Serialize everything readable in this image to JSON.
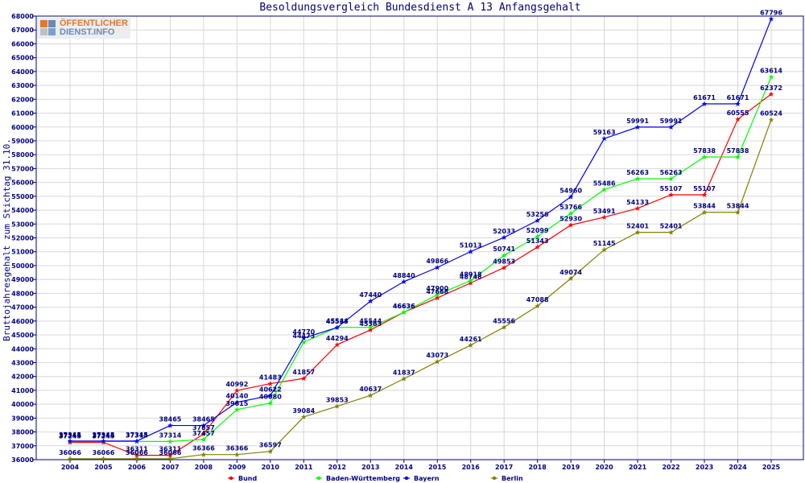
{
  "chart_data": {
    "type": "line",
    "title": "Besoldungsvergleich Bundesdienst A 13 Anfangsgehalt",
    "ylabel": "Bruttojahresgehalt zum Stichtag 31.10.",
    "xlabel": "",
    "ylim": [
      36000,
      68000
    ],
    "ytick_step": 1000,
    "grid": true,
    "legend_position": "bottom",
    "categories": [
      "2004",
      "2005",
      "2006",
      "2007",
      "2008",
      "2009",
      "2010",
      "2011",
      "2012",
      "2013",
      "2014",
      "2015",
      "2016",
      "2017",
      "2018",
      "2019",
      "2020",
      "2021",
      "2022",
      "2023",
      "2024",
      "2025"
    ],
    "series": [
      {
        "name": "Bund",
        "color": "#ff0000",
        "values": [
          37245,
          37245,
          36311,
          36311,
          37857,
          40992,
          41483,
          41857,
          44294,
          45363,
          46636,
          47668,
          48748,
          49853,
          51343,
          52930,
          53491,
          54133,
          55107,
          55107,
          60555,
          62372
        ]
      },
      {
        "name": "Baden-Württemberg",
        "color": "#00ff00",
        "values": [
          37314,
          37314,
          37314,
          37314,
          37457,
          39615,
          40080,
          44473,
          45544,
          45544,
          46636,
          47900,
          48918,
          50741,
          52099,
          53766,
          55486,
          56263,
          56263,
          57838,
          57838,
          63614
        ]
      },
      {
        "name": "Bayern",
        "color": "#0000ff",
        "values": [
          37345,
          37345,
          37345,
          38465,
          38465,
          40140,
          40622,
          44770,
          45533,
          47440,
          48840,
          49866,
          51013,
          52033,
          53256,
          54960,
          59163,
          59991,
          59991,
          61671,
          61671,
          67796
        ]
      },
      {
        "name": "Berlin",
        "color": "#808000",
        "values": [
          36066,
          36066,
          36066,
          36066,
          36366,
          36366,
          36597,
          39084,
          39853,
          40637,
          41837,
          43073,
          44261,
          45556,
          47088,
          49074,
          51145,
          52401,
          52401,
          53844,
          53844,
          60524
        ]
      }
    ]
  },
  "logo": {
    "line1": "ÖFFENTLICHER",
    "line2": "DIENST.INFO",
    "colors": [
      "#e87722",
      "#6a8ab5",
      "#c0c0c0",
      "#7aa0d0"
    ]
  }
}
